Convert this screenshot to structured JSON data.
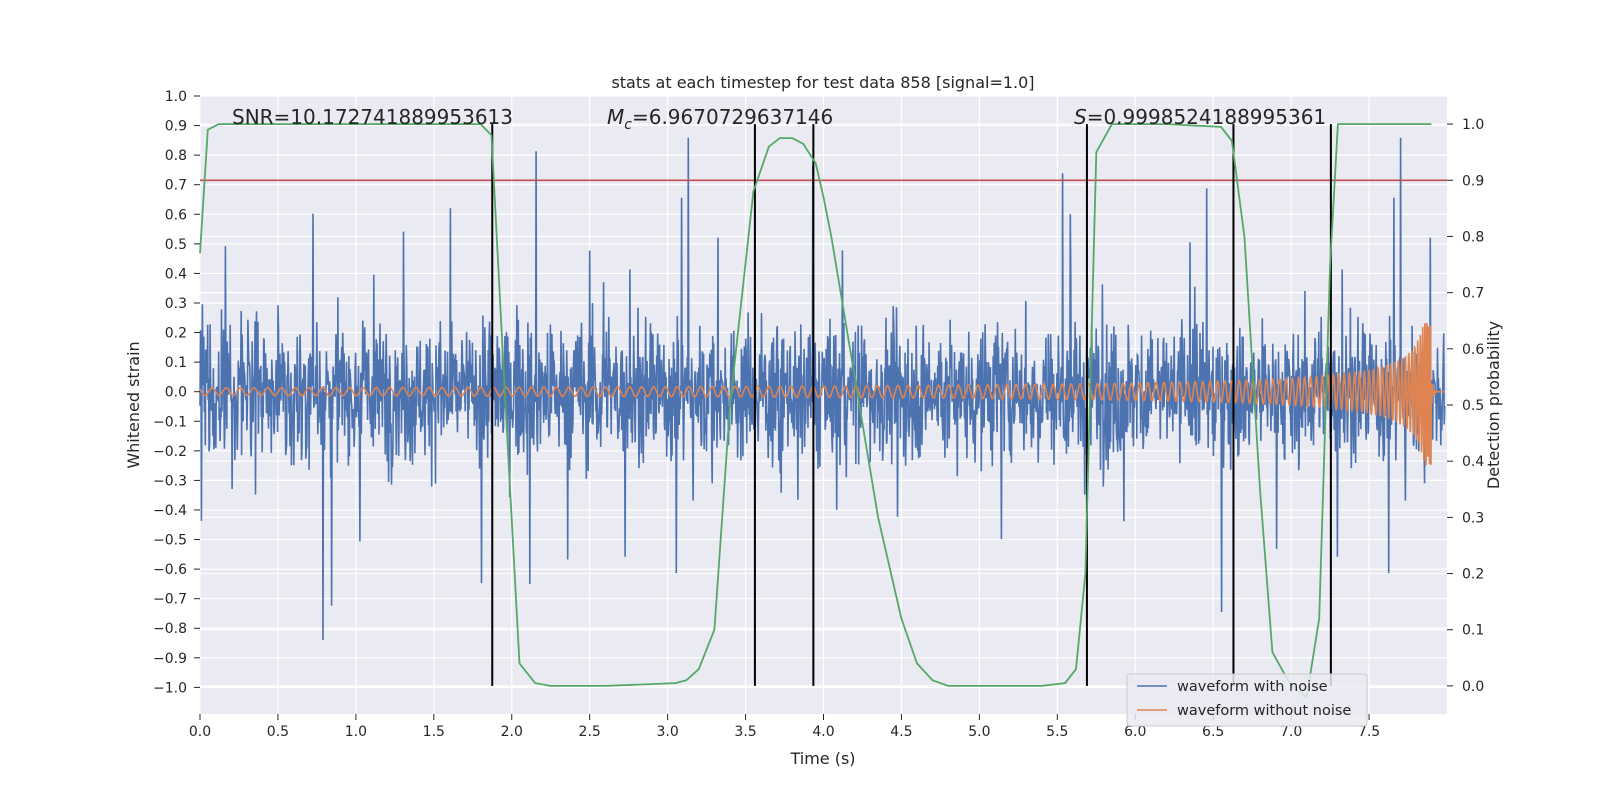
{
  "chart_data": {
    "type": "line",
    "title": "stats at each timestep for test data 858 [signal=1.0]",
    "xlabel": "Time (s)",
    "ylabel": "Whitened strain",
    "y2label": "Detection probability",
    "xlim": [
      0.0,
      8.0
    ],
    "ylim": [
      -1.09,
      1.0
    ],
    "y2lim": [
      -0.05,
      1.05
    ],
    "x_ticks": [
      "0.0",
      "0.5",
      "1.0",
      "1.5",
      "2.0",
      "2.5",
      "3.0",
      "3.5",
      "4.0",
      "4.5",
      "5.0",
      "5.5",
      "6.0",
      "6.5",
      "7.0",
      "7.5"
    ],
    "y_ticks": [
      "1.0",
      "0.9",
      "0.8",
      "0.7",
      "0.6",
      "0.5",
      "0.4",
      "0.3",
      "0.2",
      "0.1",
      "0.0",
      "−0.1",
      "−0.2",
      "−0.3",
      "−0.4",
      "−0.5",
      "−0.6",
      "−0.7",
      "−0.8",
      "−0.9",
      "−1.0"
    ],
    "y2_ticks": [
      "1.0",
      "0.9",
      "0.8",
      "0.7",
      "0.6",
      "0.5",
      "0.4",
      "0.3",
      "0.2",
      "0.1",
      "0.0"
    ],
    "grid": true,
    "legend_position": "lower-right",
    "annotations": {
      "snr": "SNR=10.172741889953613",
      "mc_symbol": "M",
      "mc_sub": "c",
      "mc_value": "=6.9670729637146",
      "s_symbol": "S",
      "s_value": "=0.9998524188995361"
    },
    "threshold": {
      "y2": 0.9,
      "color": "#c44e52"
    },
    "event_lines_x": [
      1.875,
      3.56,
      3.935,
      5.69,
      6.63,
      7.255
    ],
    "series": [
      {
        "name": "waveform with noise",
        "color": "#4c72b0",
        "kind": "noise",
        "amplitude_range": [
          -1.0,
          0.9
        ]
      },
      {
        "name": "waveform without noise",
        "color": "#dd8452",
        "kind": "chirp",
        "peak_time": 7.9,
        "peak_amplitude": 0.25
      },
      {
        "name": "",
        "color": "#55a868",
        "kind": "probability",
        "axis": "y2",
        "x": [
          0.0,
          0.05,
          0.12,
          1.8,
          1.87,
          1.95,
          2.05,
          2.15,
          2.25,
          2.6,
          3.05,
          3.12,
          3.2,
          3.3,
          3.4,
          3.55,
          3.65,
          3.72,
          3.8,
          3.87,
          3.95,
          4.0,
          4.05,
          4.2,
          4.35,
          4.5,
          4.6,
          4.7,
          4.8,
          5.4,
          5.55,
          5.62,
          5.68,
          5.75,
          5.85,
          6.2,
          6.55,
          6.62,
          6.7,
          6.8,
          6.88,
          7.0,
          7.1,
          7.18,
          7.25,
          7.3,
          7.4,
          7.9
        ],
        "y": [
          0.77,
          0.99,
          1.0,
          1.0,
          0.98,
          0.55,
          0.04,
          0.005,
          0.0,
          0.0,
          0.005,
          0.01,
          0.03,
          0.1,
          0.5,
          0.88,
          0.96,
          0.975,
          0.975,
          0.965,
          0.93,
          0.87,
          0.8,
          0.55,
          0.3,
          0.12,
          0.04,
          0.01,
          0.0,
          0.0,
          0.005,
          0.03,
          0.2,
          0.95,
          1.0,
          1.0,
          0.995,
          0.97,
          0.8,
          0.35,
          0.06,
          0.0,
          -0.02,
          0.12,
          0.75,
          1.0,
          1.0,
          1.0
        ]
      }
    ]
  }
}
